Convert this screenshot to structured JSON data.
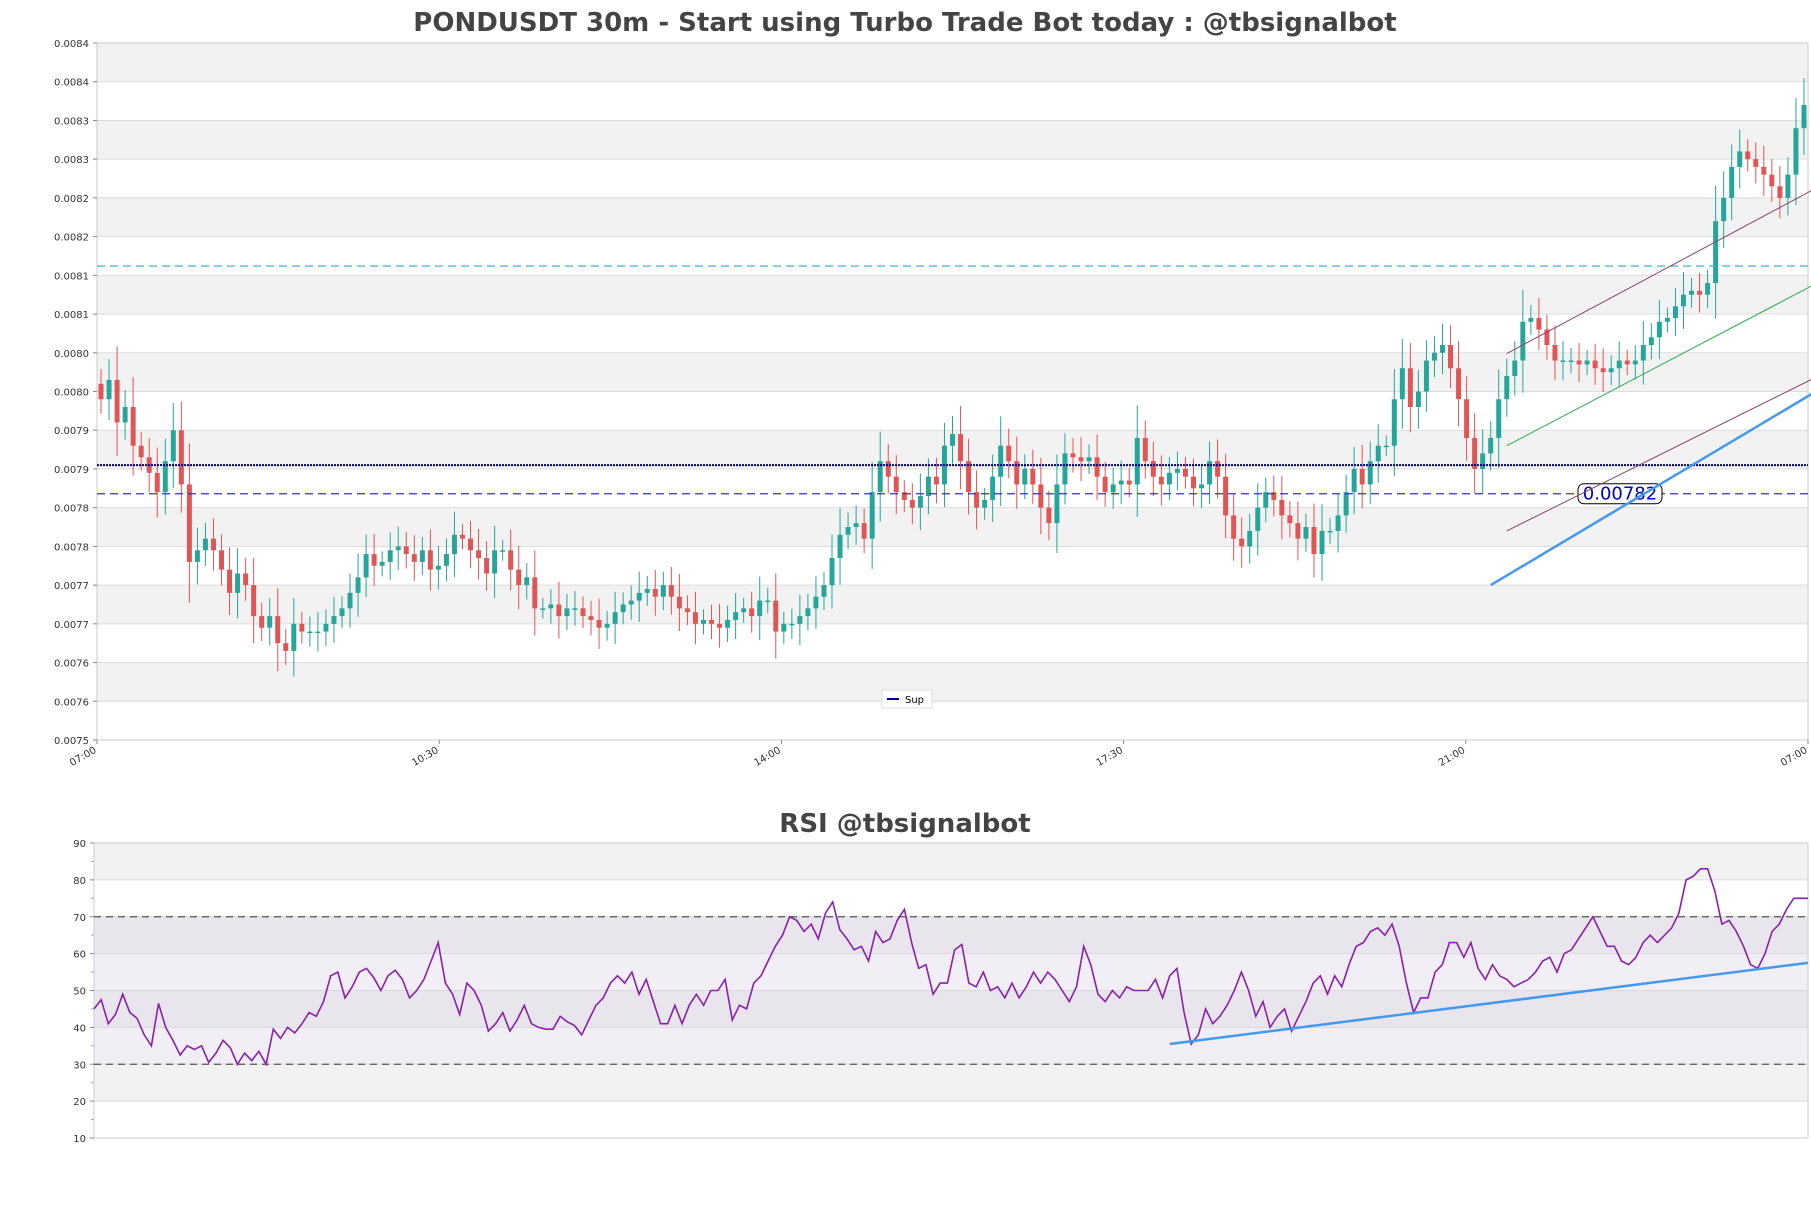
{
  "chart_data": [
    {
      "type": "candlestick",
      "title": "PONDUSDT 30m - Start using Turbo Trade Bot today : @tbsignalbot",
      "ylim": [
        0.0075,
        0.0084
      ],
      "y_tick_labels": [
        "0.0084",
        "0.0084",
        "0.0083",
        "0.0083",
        "0.0082",
        "0.0082",
        "0.0081",
        "0.0081",
        "0.0080",
        "0.0080",
        "0.0079",
        "0.0079",
        "0.0078",
        "0.0078",
        "0.0077",
        "0.0077",
        "0.0076",
        "0.0076",
        "0.0075"
      ],
      "x_tick_labels": [
        "07:00",
        "10:30",
        "14:00",
        "17:30",
        "21:00",
        "07:00"
      ],
      "legend": {
        "label": "Sup",
        "color": "#00008b",
        "placement": "bottom-center"
      },
      "support_level": 0.007855,
      "support_dashed_level": 0.007818,
      "support_label": "0.00782",
      "resistance_dashed_level": 0.008112,
      "colors": {
        "up": "#26a69a",
        "down": "#e05555",
        "trend": "#4499ee",
        "channel_upper": "#884466",
        "channel_mid": "#33aa55"
      },
      "closes": [
        0.00794,
        0.007965,
        0.00791,
        0.00793,
        0.00788,
        0.007865,
        0.007845,
        0.00782,
        0.00786,
        0.0079,
        0.00783,
        0.00773,
        0.007745,
        0.00776,
        0.007745,
        0.00772,
        0.00769,
        0.007715,
        0.0077,
        0.00766,
        0.007645,
        0.00766,
        0.007625,
        0.007615,
        0.00765,
        0.00764,
        0.00764,
        0.00764,
        0.00765,
        0.00766,
        0.00767,
        0.00769,
        0.00771,
        0.00774,
        0.007725,
        0.00773,
        0.007745,
        0.00775,
        0.00774,
        0.00773,
        0.007745,
        0.00772,
        0.007725,
        0.00774,
        0.007765,
        0.00776,
        0.007745,
        0.007735,
        0.007715,
        0.007745,
        0.007745,
        0.00772,
        0.0077,
        0.00771,
        0.00767,
        0.00767,
        0.007675,
        0.00766,
        0.00767,
        0.00767,
        0.00766,
        0.007655,
        0.007645,
        0.00765,
        0.007665,
        0.007675,
        0.00768,
        0.00769,
        0.007695,
        0.007685,
        0.0077,
        0.007685,
        0.00767,
        0.007665,
        0.00765,
        0.007655,
        0.00765,
        0.007645,
        0.007655,
        0.007665,
        0.00767,
        0.00766,
        0.00768,
        0.00768,
        0.00764,
        0.00765,
        0.00765,
        0.00766,
        0.00767,
        0.007685,
        0.0077,
        0.007735,
        0.007765,
        0.007775,
        0.00778,
        0.00776,
        0.00782,
        0.00786,
        0.00784,
        0.00782,
        0.00781,
        0.0078,
        0.007815,
        0.00784,
        0.00783,
        0.00788,
        0.007895,
        0.00786,
        0.00782,
        0.0078,
        0.00781,
        0.00784,
        0.00788,
        0.00786,
        0.00783,
        0.00785,
        0.00783,
        0.0078,
        0.00778,
        0.00783,
        0.00787,
        0.007865,
        0.00786,
        0.007865,
        0.00784,
        0.00782,
        0.00783,
        0.007835,
        0.00783,
        0.00789,
        0.00786,
        0.00784,
        0.00783,
        0.007845,
        0.00785,
        0.00784,
        0.007825,
        0.00783,
        0.00786,
        0.00784,
        0.00779,
        0.00776,
        0.00775,
        0.00777,
        0.0078,
        0.00782,
        0.00781,
        0.00779,
        0.00778,
        0.00776,
        0.007775,
        0.00774,
        0.00777,
        0.00777,
        0.00779,
        0.00782,
        0.00785,
        0.00783,
        0.00786,
        0.00788,
        0.00788,
        0.00794,
        0.00798,
        0.00793,
        0.00795,
        0.00799,
        0.008,
        0.00801,
        0.00798,
        0.00794,
        0.00789,
        0.00785,
        0.00787,
        0.00789,
        0.00794,
        0.00797,
        0.00799,
        0.00804,
        0.008045,
        0.00803,
        0.00801,
        0.00799,
        0.00799,
        0.00799,
        0.007985,
        0.00799,
        0.00798,
        0.007975,
        0.00798,
        0.00799,
        0.007985,
        0.00799,
        0.00801,
        0.00802,
        0.00804,
        0.008045,
        0.00806,
        0.008075,
        0.00808,
        0.008075,
        0.00809,
        0.00817,
        0.0082,
        0.00824,
        0.00826,
        0.00825,
        0.00824,
        0.00823,
        0.008215,
        0.0082,
        0.00823,
        0.00829,
        0.00832
      ]
    },
    {
      "type": "line",
      "title": "RSI @tbsignalbot",
      "ylim": [
        10,
        90
      ],
      "y_tick_labels": [
        "90",
        "80",
        "70",
        "60",
        "50",
        "40",
        "30",
        "20",
        "10"
      ],
      "overbought": 70,
      "oversold": 30,
      "color": "#8822aa",
      "trend_color": "#4499ee",
      "values": [
        45.0,
        47.5,
        41.0,
        43.5,
        49.0,
        44.0,
        42.5,
        38.0,
        35.0,
        46.5,
        40.0,
        36.5,
        32.5,
        35.0,
        34.0,
        35.0,
        30.5,
        33.0,
        36.5,
        34.5,
        30.0,
        33.0,
        31.0,
        33.5,
        30.0,
        39.5,
        37.0,
        40.0,
        38.5,
        41.0,
        44.0,
        43.0,
        47.0,
        54.0,
        55.0,
        48.0,
        51.0,
        55.0,
        56.0,
        53.5,
        50.0,
        54.0,
        55.5,
        53.0,
        48.0,
        50.0,
        53.0,
        58.0,
        63.0,
        52.0,
        49.0,
        43.5,
        52.0,
        50.0,
        46.0,
        39.0,
        41.0,
        44.0,
        39.0,
        42.0,
        46.0,
        41.0,
        40.0,
        39.5,
        39.5,
        43.0,
        41.5,
        40.5,
        38.0,
        42.0,
        46.0,
        48.0,
        52.0,
        54.0,
        52.0,
        55.0,
        49.0,
        53.0,
        47.0,
        41.0,
        41.0,
        46.0,
        41.0,
        46.0,
        49.0,
        46.0,
        50.0,
        50.0,
        53.0,
        42.0,
        46.0,
        45.0,
        52.0,
        54.0,
        58.0,
        62.0,
        65.0,
        70.0,
        69.0,
        66.0,
        68.0,
        64.0,
        71.0,
        74.0,
        66.5,
        64.0,
        61.0,
        62.0,
        58.0,
        66.0,
        63.0,
        64.0,
        69.0,
        72.0,
        63.0,
        56.0,
        57.0,
        49.0,
        52.0,
        52.0,
        61.0,
        62.5,
        52.0,
        51.0,
        55.0,
        50.0,
        51.0,
        48.0,
        52.0,
        48.0,
        51.0,
        55.0,
        52.0,
        55.0,
        53.0,
        50.0,
        47.0,
        51.0,
        62.0,
        57.0,
        49.0,
        47.0,
        50.0,
        48.0,
        51.0,
        50.0,
        50.0,
        50.0,
        53.0,
        48.0,
        54.0,
        56.0,
        44.0,
        35.5,
        38.0,
        45.0,
        41.0,
        43.0,
        46.0,
        50.0,
        55.0,
        50.0,
        43.0,
        47.0,
        40.0,
        43.0,
        45.0,
        39.0,
        43.0,
        47.0,
        52.0,
        54.0,
        49.0,
        54.0,
        51.0,
        57.0,
        62.0,
        63.0,
        66.0,
        67.0,
        65.0,
        68.0,
        62.0,
        52.0,
        44.0,
        48.0,
        48.0,
        55.0,
        57.0,
        63.0,
        63.0,
        59.0,
        63.0,
        56.0,
        53.0,
        57.0,
        54.0,
        53.0,
        51.0,
        52.0,
        53.0,
        55.0,
        58.0,
        59.0,
        55.0,
        60.0,
        61.0,
        64.0,
        67.0,
        70.0,
        66.0,
        62.0,
        62.0,
        58.0,
        57.0,
        59.0,
        63.0,
        65.0,
        63.0,
        65.0,
        67.0,
        71.0,
        80.0,
        81.0,
        83.0,
        83.0,
        77.0,
        68.0,
        69.0,
        66.0,
        62.0,
        57.0,
        56.0,
        60.0,
        66.0,
        68.0,
        72.0,
        75.0,
        75.0,
        75.0
      ]
    }
  ]
}
